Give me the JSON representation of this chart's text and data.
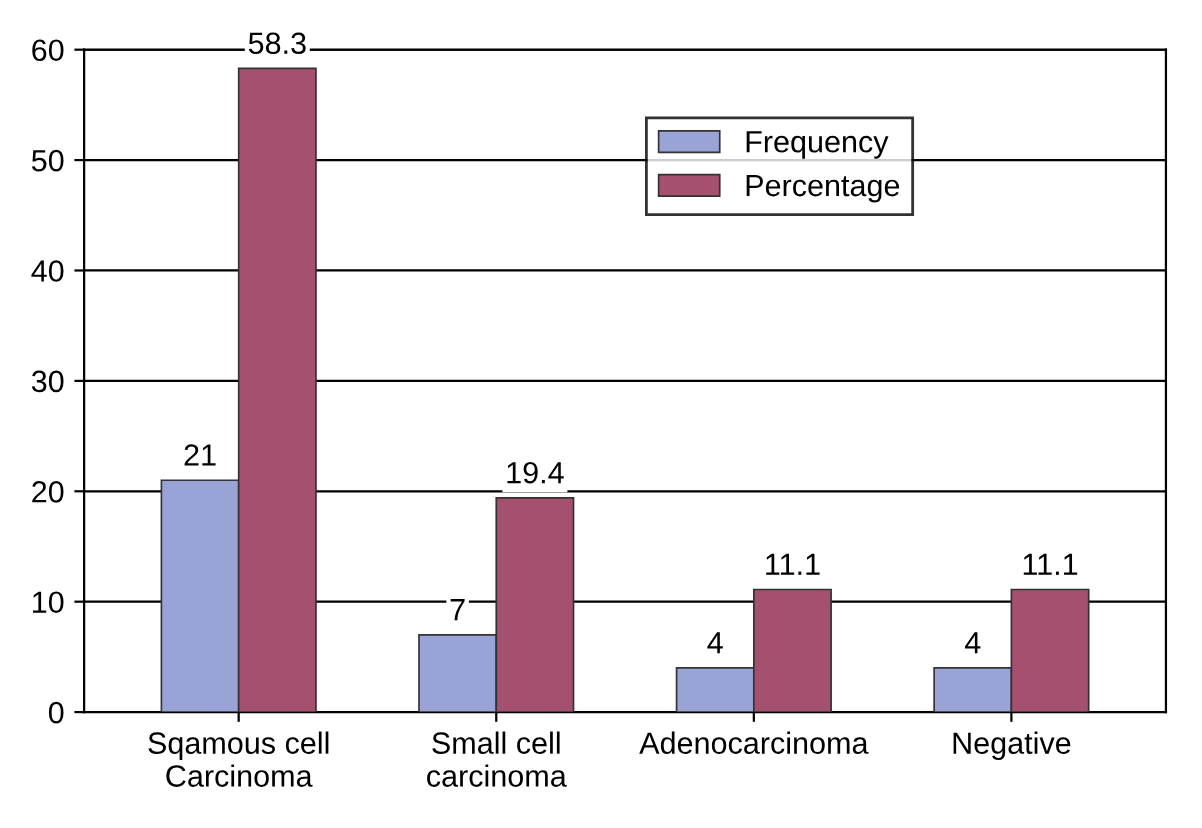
{
  "chart_data": {
    "type": "bar",
    "categories": [
      "Sqamous cell\nCarcinoma",
      "Small cell\ncarcinoma",
      "Adenocarcinoma",
      "Negative"
    ],
    "series": [
      {
        "name": "Frequency",
        "color": "#99a3d6",
        "values": [
          21,
          7,
          4,
          4
        ]
      },
      {
        "name": "Percentage",
        "color": "#a5506f",
        "values": [
          58.3,
          19.4,
          11.1,
          11.1
        ]
      }
    ],
    "ylim": [
      0,
      60
    ],
    "yticks": [
      0,
      10,
      20,
      30,
      40,
      50,
      60
    ],
    "grid": "y",
    "legend": "top right",
    "data_labels": true
  }
}
